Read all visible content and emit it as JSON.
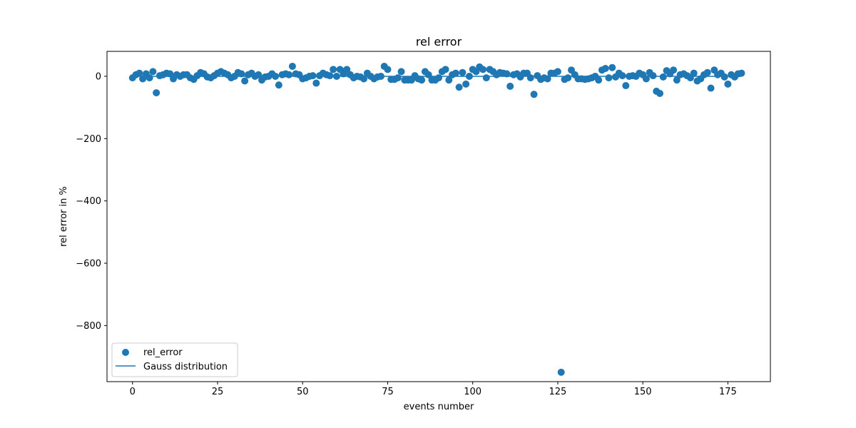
{
  "colors": {
    "series": "#1f77b4",
    "axis": "#000000",
    "legend_border": "#cccccc",
    "background": "#ffffff"
  },
  "chart_data": {
    "type": "scatter",
    "title": "rel error",
    "xlabel": "events number",
    "ylabel": "rel error in %",
    "xlim": [
      -7.5,
      187.5
    ],
    "ylim": [
      -980,
      80
    ],
    "xticks": [
      0,
      25,
      50,
      75,
      100,
      125,
      150,
      175
    ],
    "yticks": [
      -800,
      -600,
      -400,
      -200,
      0
    ],
    "ytick_labels": [
      "−800",
      "−600",
      "−400",
      "−200",
      "0"
    ],
    "grid": false,
    "legend_position": "lower-left",
    "legend": [
      {
        "label": "rel_error",
        "kind": "marker"
      },
      {
        "label": "Gauss distribution",
        "kind": "line"
      }
    ],
    "series": [
      {
        "name": "rel_error",
        "kind": "scatter",
        "x": [
          0,
          1,
          2,
          3,
          4,
          5,
          6,
          7,
          8,
          9,
          10,
          11,
          12,
          13,
          14,
          15,
          16,
          17,
          18,
          19,
          20,
          21,
          22,
          23,
          24,
          25,
          26,
          27,
          28,
          29,
          30,
          31,
          32,
          33,
          34,
          35,
          36,
          37,
          38,
          39,
          40,
          41,
          42,
          43,
          44,
          45,
          46,
          47,
          48,
          49,
          50,
          51,
          52,
          53,
          54,
          55,
          56,
          57,
          58,
          59,
          60,
          61,
          62,
          63,
          64,
          65,
          66,
          67,
          68,
          69,
          70,
          71,
          72,
          73,
          74,
          75,
          76,
          77,
          78,
          79,
          80,
          81,
          82,
          83,
          84,
          85,
          86,
          87,
          88,
          89,
          90,
          91,
          92,
          93,
          94,
          95,
          96,
          97,
          98,
          99,
          100,
          101,
          102,
          103,
          104,
          105,
          106,
          107,
          108,
          109,
          110,
          111,
          112,
          113,
          114,
          115,
          116,
          117,
          118,
          119,
          120,
          121,
          122,
          123,
          124,
          125,
          126,
          127,
          128,
          129,
          130,
          131,
          132,
          133,
          134,
          135,
          136,
          137,
          138,
          139,
          140,
          141,
          142,
          143,
          144,
          145,
          146,
          147,
          148,
          149,
          150,
          151,
          152,
          153,
          154,
          155,
          156,
          157,
          158,
          159,
          160,
          161,
          162,
          163,
          164,
          165,
          166,
          167,
          168,
          169,
          170,
          171,
          172,
          173,
          174,
          175,
          176,
          177,
          178,
          179
        ],
        "y": [
          -5,
          5,
          10,
          -8,
          8,
          -5,
          15,
          -53,
          2,
          5,
          10,
          8,
          -8,
          5,
          0,
          5,
          5,
          -5,
          -10,
          2,
          12,
          8,
          -2,
          -5,
          2,
          10,
          15,
          10,
          5,
          -5,
          0,
          12,
          8,
          -15,
          5,
          10,
          0,
          5,
          -12,
          -2,
          0,
          8,
          0,
          -28,
          5,
          8,
          5,
          32,
          8,
          5,
          -8,
          -5,
          0,
          2,
          -22,
          2,
          10,
          5,
          2,
          22,
          0,
          22,
          8,
          22,
          5,
          -5,
          0,
          -2,
          -8,
          10,
          0,
          -8,
          -2,
          0,
          32,
          22,
          -10,
          -10,
          -5,
          15,
          -12,
          -12,
          -12,
          2,
          -8,
          -12,
          15,
          5,
          -12,
          -12,
          -5,
          15,
          22,
          -12,
          5,
          10,
          -35,
          12,
          -25,
          0,
          22,
          15,
          30,
          22,
          -5,
          22,
          15,
          5,
          12,
          10,
          8,
          -32,
          5,
          8,
          -2,
          10,
          10,
          -5,
          -58,
          2,
          -10,
          -5,
          -8,
          10,
          10,
          15,
          -950,
          -10,
          -5,
          20,
          5,
          -8,
          -8,
          -10,
          -8,
          -5,
          0,
          -12,
          20,
          25,
          -5,
          28,
          -2,
          10,
          2,
          -30,
          0,
          2,
          0,
          10,
          5,
          -8,
          12,
          2,
          -48,
          -55,
          -2,
          18,
          8,
          20,
          -12,
          5,
          8,
          2,
          -5,
          10,
          -15,
          -8,
          5,
          12,
          -38,
          20,
          5,
          10,
          -2,
          -25,
          5,
          -2,
          8,
          10
        ]
      },
      {
        "name": "Gauss distribution",
        "kind": "line",
        "x": [
          0,
          179
        ],
        "y": [
          0,
          0
        ]
      }
    ]
  }
}
